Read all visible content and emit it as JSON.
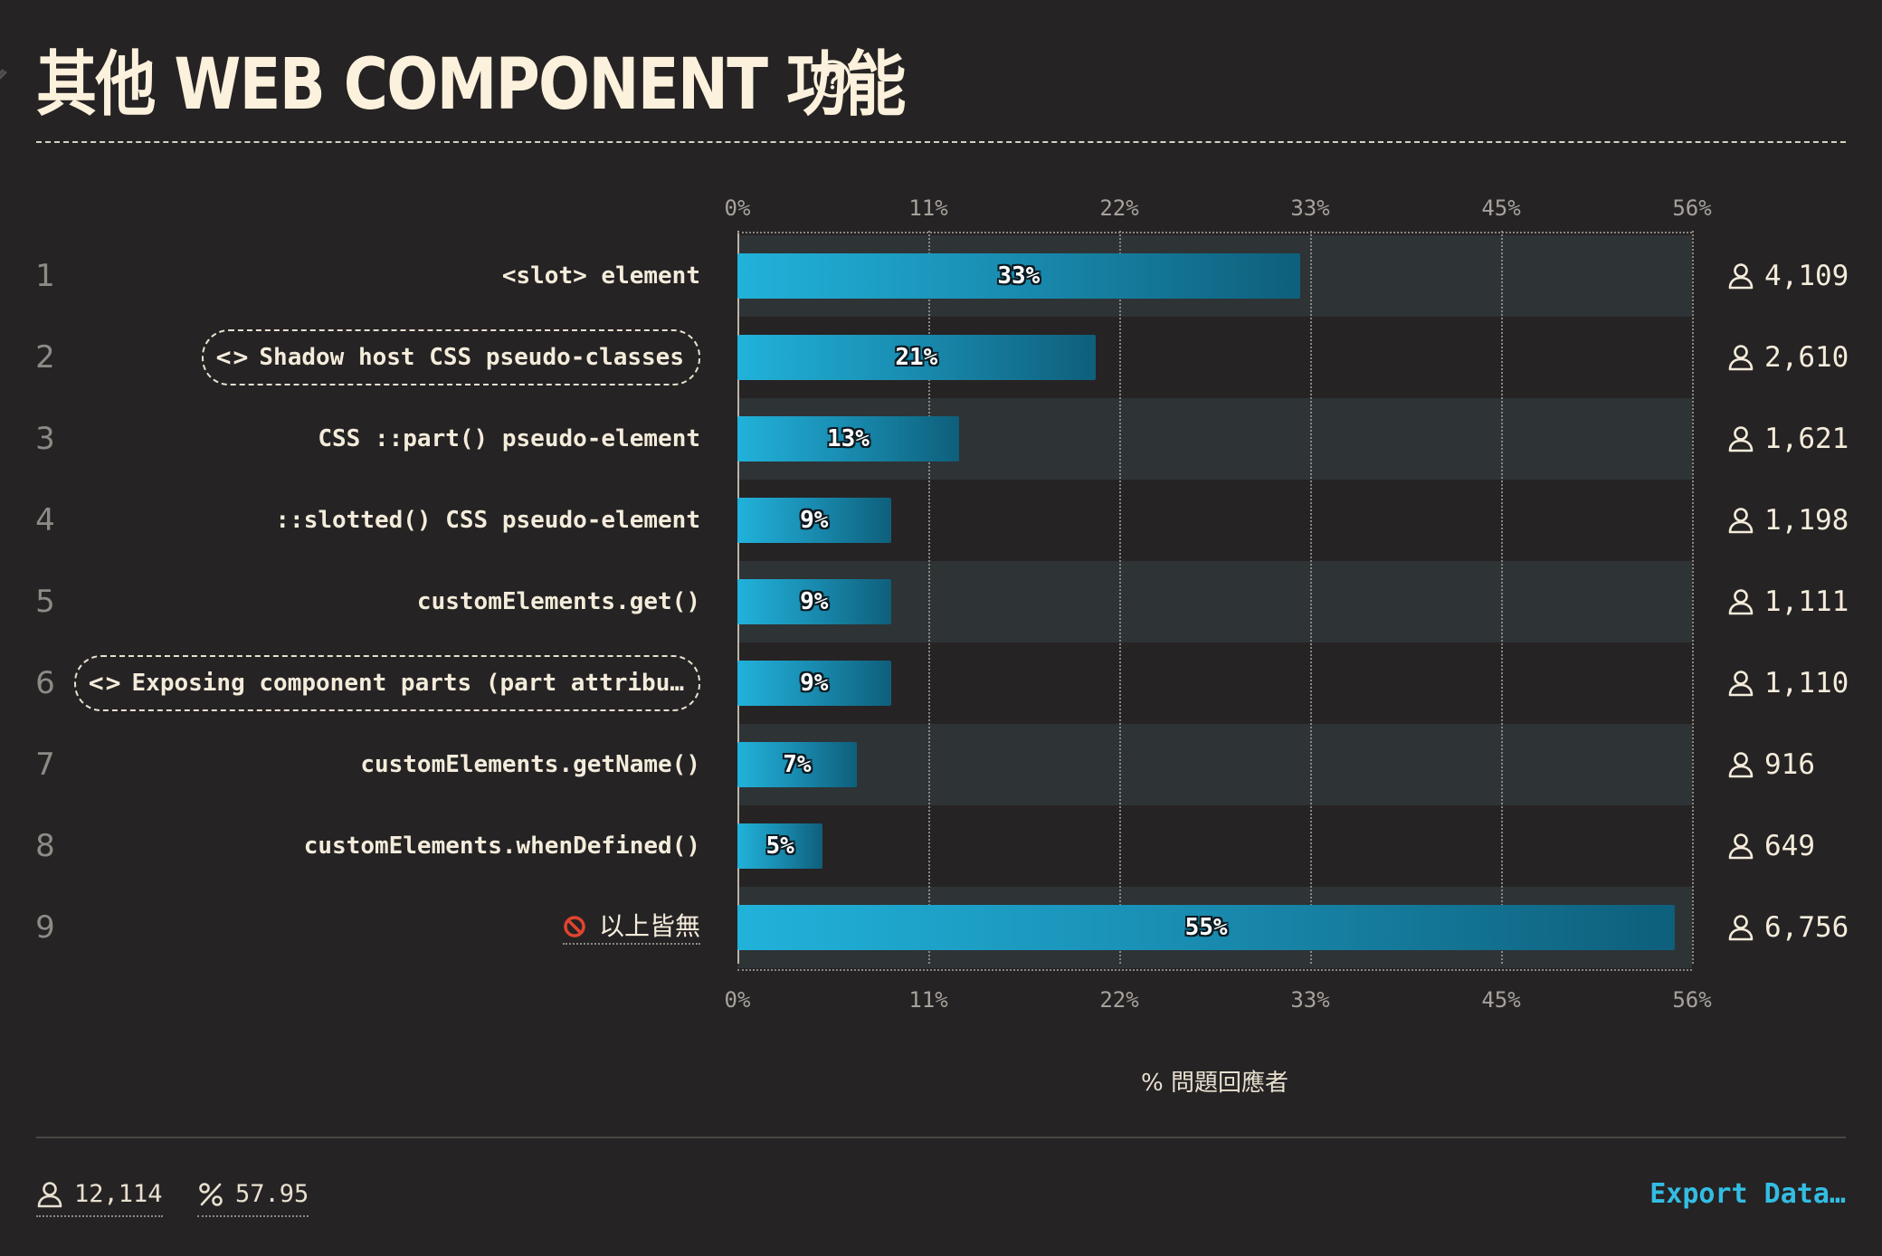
{
  "title": "其他 WEB COMPONENT 功能",
  "axis_ticks": [
    "0%",
    "11%",
    "22%",
    "33%",
    "45%",
    "56%"
  ],
  "axis_title": "% 問題回應者",
  "rows": [
    {
      "rank": "1",
      "label": "<slot> element",
      "pill": false,
      "none": false,
      "pct": 33,
      "pct_label": "33%",
      "count": "4,109"
    },
    {
      "rank": "2",
      "label": "Shadow host CSS pseudo-classes",
      "pill": true,
      "none": false,
      "pct": 21,
      "pct_label": "21%",
      "count": "2,610"
    },
    {
      "rank": "3",
      "label": "CSS ::part() pseudo-element",
      "pill": false,
      "none": false,
      "pct": 13,
      "pct_label": "13%",
      "count": "1,621"
    },
    {
      "rank": "4",
      "label": "::slotted() CSS pseudo-element",
      "pill": false,
      "none": false,
      "pct": 9,
      "pct_label": "9%",
      "count": "1,198"
    },
    {
      "rank": "5",
      "label": "customElements.get()",
      "pill": false,
      "none": false,
      "pct": 9,
      "pct_label": "9%",
      "count": "1,111"
    },
    {
      "rank": "6",
      "label": "Exposing component parts (part attribu…",
      "pill": true,
      "none": false,
      "pct": 9,
      "pct_label": "9%",
      "count": "1,110"
    },
    {
      "rank": "7",
      "label": "customElements.getName()",
      "pill": false,
      "none": false,
      "pct": 7,
      "pct_label": "7%",
      "count": "916"
    },
    {
      "rank": "8",
      "label": "customElements.whenDefined()",
      "pill": false,
      "none": false,
      "pct": 5,
      "pct_label": "5%",
      "count": "649"
    },
    {
      "rank": "9",
      "label": "以上皆無",
      "pill": false,
      "none": true,
      "pct": 55,
      "pct_label": "55%",
      "count": "6,756"
    }
  ],
  "footer": {
    "respondents": "12,114",
    "percentage": "57.95",
    "export_label": "Export Data…"
  },
  "colors": {
    "background": "#262324",
    "bar_start": "#21b2da",
    "bar_end": "#0e5f7b",
    "row_band": "#2e3336",
    "accent": "#33bde3"
  },
  "chart_data": {
    "type": "bar",
    "orientation": "horizontal",
    "title": "其他 WEB COMPONENT 功能",
    "xlabel": "% 問題回應者",
    "ylabel": "",
    "xlim": [
      0,
      56
    ],
    "categories": [
      "<slot> element",
      "Shadow host CSS pseudo-classes",
      "CSS ::part() pseudo-element",
      "::slotted() CSS pseudo-element",
      "customElements.get()",
      "Exposing component parts (part attribu…",
      "customElements.getName()",
      "customElements.whenDefined()",
      "以上皆無"
    ],
    "values": [
      33,
      21,
      13,
      9,
      9,
      9,
      7,
      5,
      55
    ],
    "counts": [
      4109,
      2610,
      1621,
      1198,
      1111,
      1110,
      916,
      649,
      6756
    ],
    "grid": true
  }
}
